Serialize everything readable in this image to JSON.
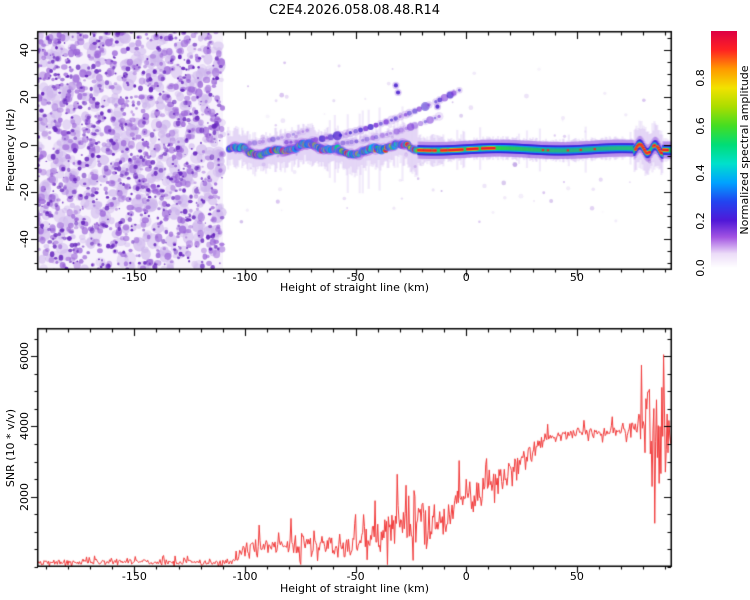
{
  "title": "C2E4.2026.058.08.48.R14",
  "colors": {
    "background": "#ffffff",
    "axis": "#000000",
    "snr_line": "#f23b3b",
    "noise_dark": "#6a2bbf",
    "noise_mid": "#9a63d8",
    "noise_light": "#cdb5ec"
  },
  "chart_data": [
    {
      "type": "heatmap",
      "name": "doppler-spectrogram",
      "title": "C2E4.2026.058.08.48.R14",
      "xlabel": "Height of straight line (km)",
      "ylabel": "Frequency (Hz)",
      "xlim": [
        -194,
        93
      ],
      "ylim": [
        -53,
        48
      ],
      "xticks": [
        -150,
        -100,
        -50,
        0,
        50
      ],
      "x_minor_step": 10,
      "yticks": [
        -40,
        -20,
        0,
        20,
        40
      ],
      "y_minor_step": 5,
      "grid": false,
      "colorbar": {
        "label": "Normalized spectral amplitude",
        "ticks": [
          {
            "label": "0.0",
            "value": 0.0
          },
          {
            "label": "0.2",
            "value": 0.2
          },
          {
            "label": "0.4",
            "value": 0.4
          },
          {
            "label": "0.6",
            "value": 0.6
          },
          {
            "label": "0.8",
            "value": 0.8
          }
        ],
        "range": [
          0,
          1
        ],
        "stops": [
          [
            0.0,
            "#ffffff"
          ],
          [
            0.06,
            "#ecdcf8"
          ],
          [
            0.13,
            "#a254e2"
          ],
          [
            0.2,
            "#5018d8"
          ],
          [
            0.28,
            "#2244f0"
          ],
          [
            0.36,
            "#00a2ff"
          ],
          [
            0.44,
            "#00e0cc"
          ],
          [
            0.52,
            "#00dd77"
          ],
          [
            0.6,
            "#44dd22"
          ],
          [
            0.68,
            "#aadd00"
          ],
          [
            0.76,
            "#f2e200"
          ],
          [
            0.84,
            "#ff9900"
          ],
          [
            0.92,
            "#ff2222"
          ],
          [
            1.0,
            "#dd0044"
          ]
        ]
      },
      "noise_region": {
        "x_start": -194,
        "x_end": -110,
        "seed": 7,
        "counts": {
          "light": 520,
          "mid": 700,
          "dark": 560
        }
      },
      "signal_band": {
        "x_start": -108,
        "x_end": 93,
        "center_hz": -2,
        "blobby_until": -22,
        "wiggle_amp_hz": 1.6,
        "red_dash_ranges": [
          [
            -22,
            13
          ],
          [
            75,
            91
          ]
        ],
        "disturbed_ranges": [
          [
            76,
            89
          ]
        ]
      },
      "echo_traces": [
        {
          "x0": -81,
          "f0": 1.0,
          "x1": -3,
          "f1": 23,
          "curve": 1.7,
          "alpha": 0.85
        },
        {
          "x0": -58,
          "f0": 0.5,
          "x1": -12,
          "f1": 12,
          "curve": 1.5,
          "alpha": 0.6
        },
        {
          "x0": -98,
          "f0": 0.5,
          "x1": -72,
          "f1": 6,
          "curve": 1.3,
          "alpha": 0.45
        }
      ],
      "isolated_blobs": [
        [
          -31.8,
          25.0
        ],
        [
          -30.8,
          22.0
        ],
        [
          -13,
          16
        ]
      ],
      "specks": {
        "count": 95,
        "seed": 11
      }
    },
    {
      "type": "line",
      "name": "snr-profile",
      "xlabel": "Height of straight line (km)",
      "ylabel": "SNR (10 * v/v)",
      "xlim": [
        -194,
        93
      ],
      "ylim": [
        0,
        6800
      ],
      "xticks": [
        -150,
        -100,
        -50,
        0,
        50
      ],
      "x_minor_step": 10,
      "yticks": [
        2000,
        4000,
        6000
      ],
      "y_minor_step": 500,
      "grid": false,
      "legend": false,
      "series": [
        {
          "name": "SNR",
          "color": "#f23b3b",
          "step_km": 0.4,
          "seed": 5,
          "anchors": [
            [
              -194,
              140,
              90
            ],
            [
              -150,
              140,
              90
            ],
            [
              -110,
              140,
              90
            ],
            [
              -105,
              160,
              110
            ],
            [
              -103,
              380,
              220
            ],
            [
              -99,
              480,
              260
            ],
            [
              -95,
              520,
              300
            ],
            [
              -91,
              560,
              320
            ],
            [
              -87,
              540,
              320
            ],
            [
              -83,
              560,
              340
            ],
            [
              -79,
              620,
              380
            ],
            [
              -75,
              640,
              400
            ],
            [
              -71,
              660,
              430
            ],
            [
              -69,
              700,
              550
            ],
            [
              -66,
              620,
              400
            ],
            [
              -62,
              560,
              330
            ],
            [
              -58,
              520,
              300
            ],
            [
              -54,
              560,
              320
            ],
            [
              -51,
              640,
              360
            ],
            [
              -48,
              800,
              400
            ],
            [
              -45,
              850,
              450
            ],
            [
              -42,
              900,
              500
            ],
            [
              -39,
              950,
              550
            ],
            [
              -36,
              1000,
              600
            ],
            [
              -33,
              1100,
              650
            ],
            [
              -30,
              1250,
              700
            ],
            [
              -27,
              1350,
              750
            ],
            [
              -24,
              1450,
              800
            ],
            [
              -21,
              1400,
              850
            ],
            [
              -18,
              1200,
              800
            ],
            [
              -15,
              1100,
              750
            ],
            [
              -13,
              1300,
              650
            ],
            [
              -10,
              1500,
              600
            ],
            [
              -7,
              1650,
              600
            ],
            [
              -4,
              1750,
              620
            ],
            [
              -1,
              1850,
              620
            ],
            [
              2,
              1950,
              600
            ],
            [
              5,
              2050,
              580
            ],
            [
              8,
              2150,
              560
            ],
            [
              11,
              2250,
              540
            ],
            [
              14,
              2400,
              500
            ],
            [
              17,
              2550,
              460
            ],
            [
              20,
              2750,
              420
            ],
            [
              23,
              2950,
              380
            ],
            [
              26,
              3150,
              330
            ],
            [
              29,
              3350,
              290
            ],
            [
              32,
              3500,
              250
            ],
            [
              35,
              3600,
              220
            ],
            [
              38,
              3680,
              200
            ],
            [
              42,
              3740,
              180
            ],
            [
              46,
              3780,
              170
            ],
            [
              50,
              3800,
              170
            ],
            [
              54,
              3820,
              170
            ],
            [
              58,
              3840,
              180
            ],
            [
              62,
              3850,
              180
            ],
            [
              66,
              3860,
              190
            ],
            [
              70,
              3880,
              210
            ],
            [
              73,
              3900,
              240
            ],
            [
              76,
              3950,
              350
            ],
            [
              78,
              4000,
              600
            ],
            [
              80,
              4100,
              1000
            ],
            [
              82,
              4250,
              1500
            ],
            [
              84,
              4100,
              2200
            ],
            [
              86,
              3800,
              2700
            ],
            [
              87.5,
              3700,
              2400
            ],
            [
              89,
              3500,
              1600
            ],
            [
              90.5,
              3600,
              1000
            ],
            [
              92,
              3750,
              600
            ],
            [
              93,
              3800,
              400
            ]
          ]
        }
      ]
    }
  ]
}
